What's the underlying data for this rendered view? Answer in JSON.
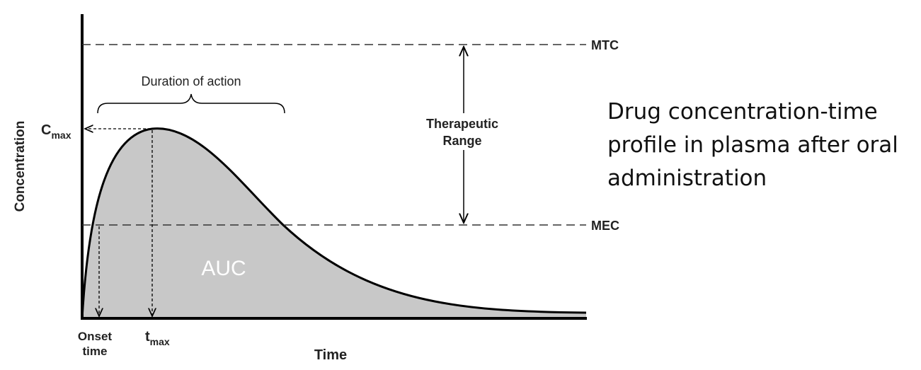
{
  "diagram": {
    "y_axis_label": "Concentration",
    "x_axis_label": "Time",
    "mtc": "MTC",
    "mec": "MEC",
    "duration": "Duration of action",
    "therapeutic_range": [
      "Therapeutic",
      "Range"
    ],
    "cmax": {
      "symbol": "C",
      "subscript": "max"
    },
    "tmax": {
      "symbol": "t",
      "subscript": "max"
    },
    "onset": [
      "Onset",
      "time"
    ],
    "area": "AUC"
  },
  "caption": [
    "Drug concentration-time",
    "profile in plasma after oral",
    "administration"
  ]
}
